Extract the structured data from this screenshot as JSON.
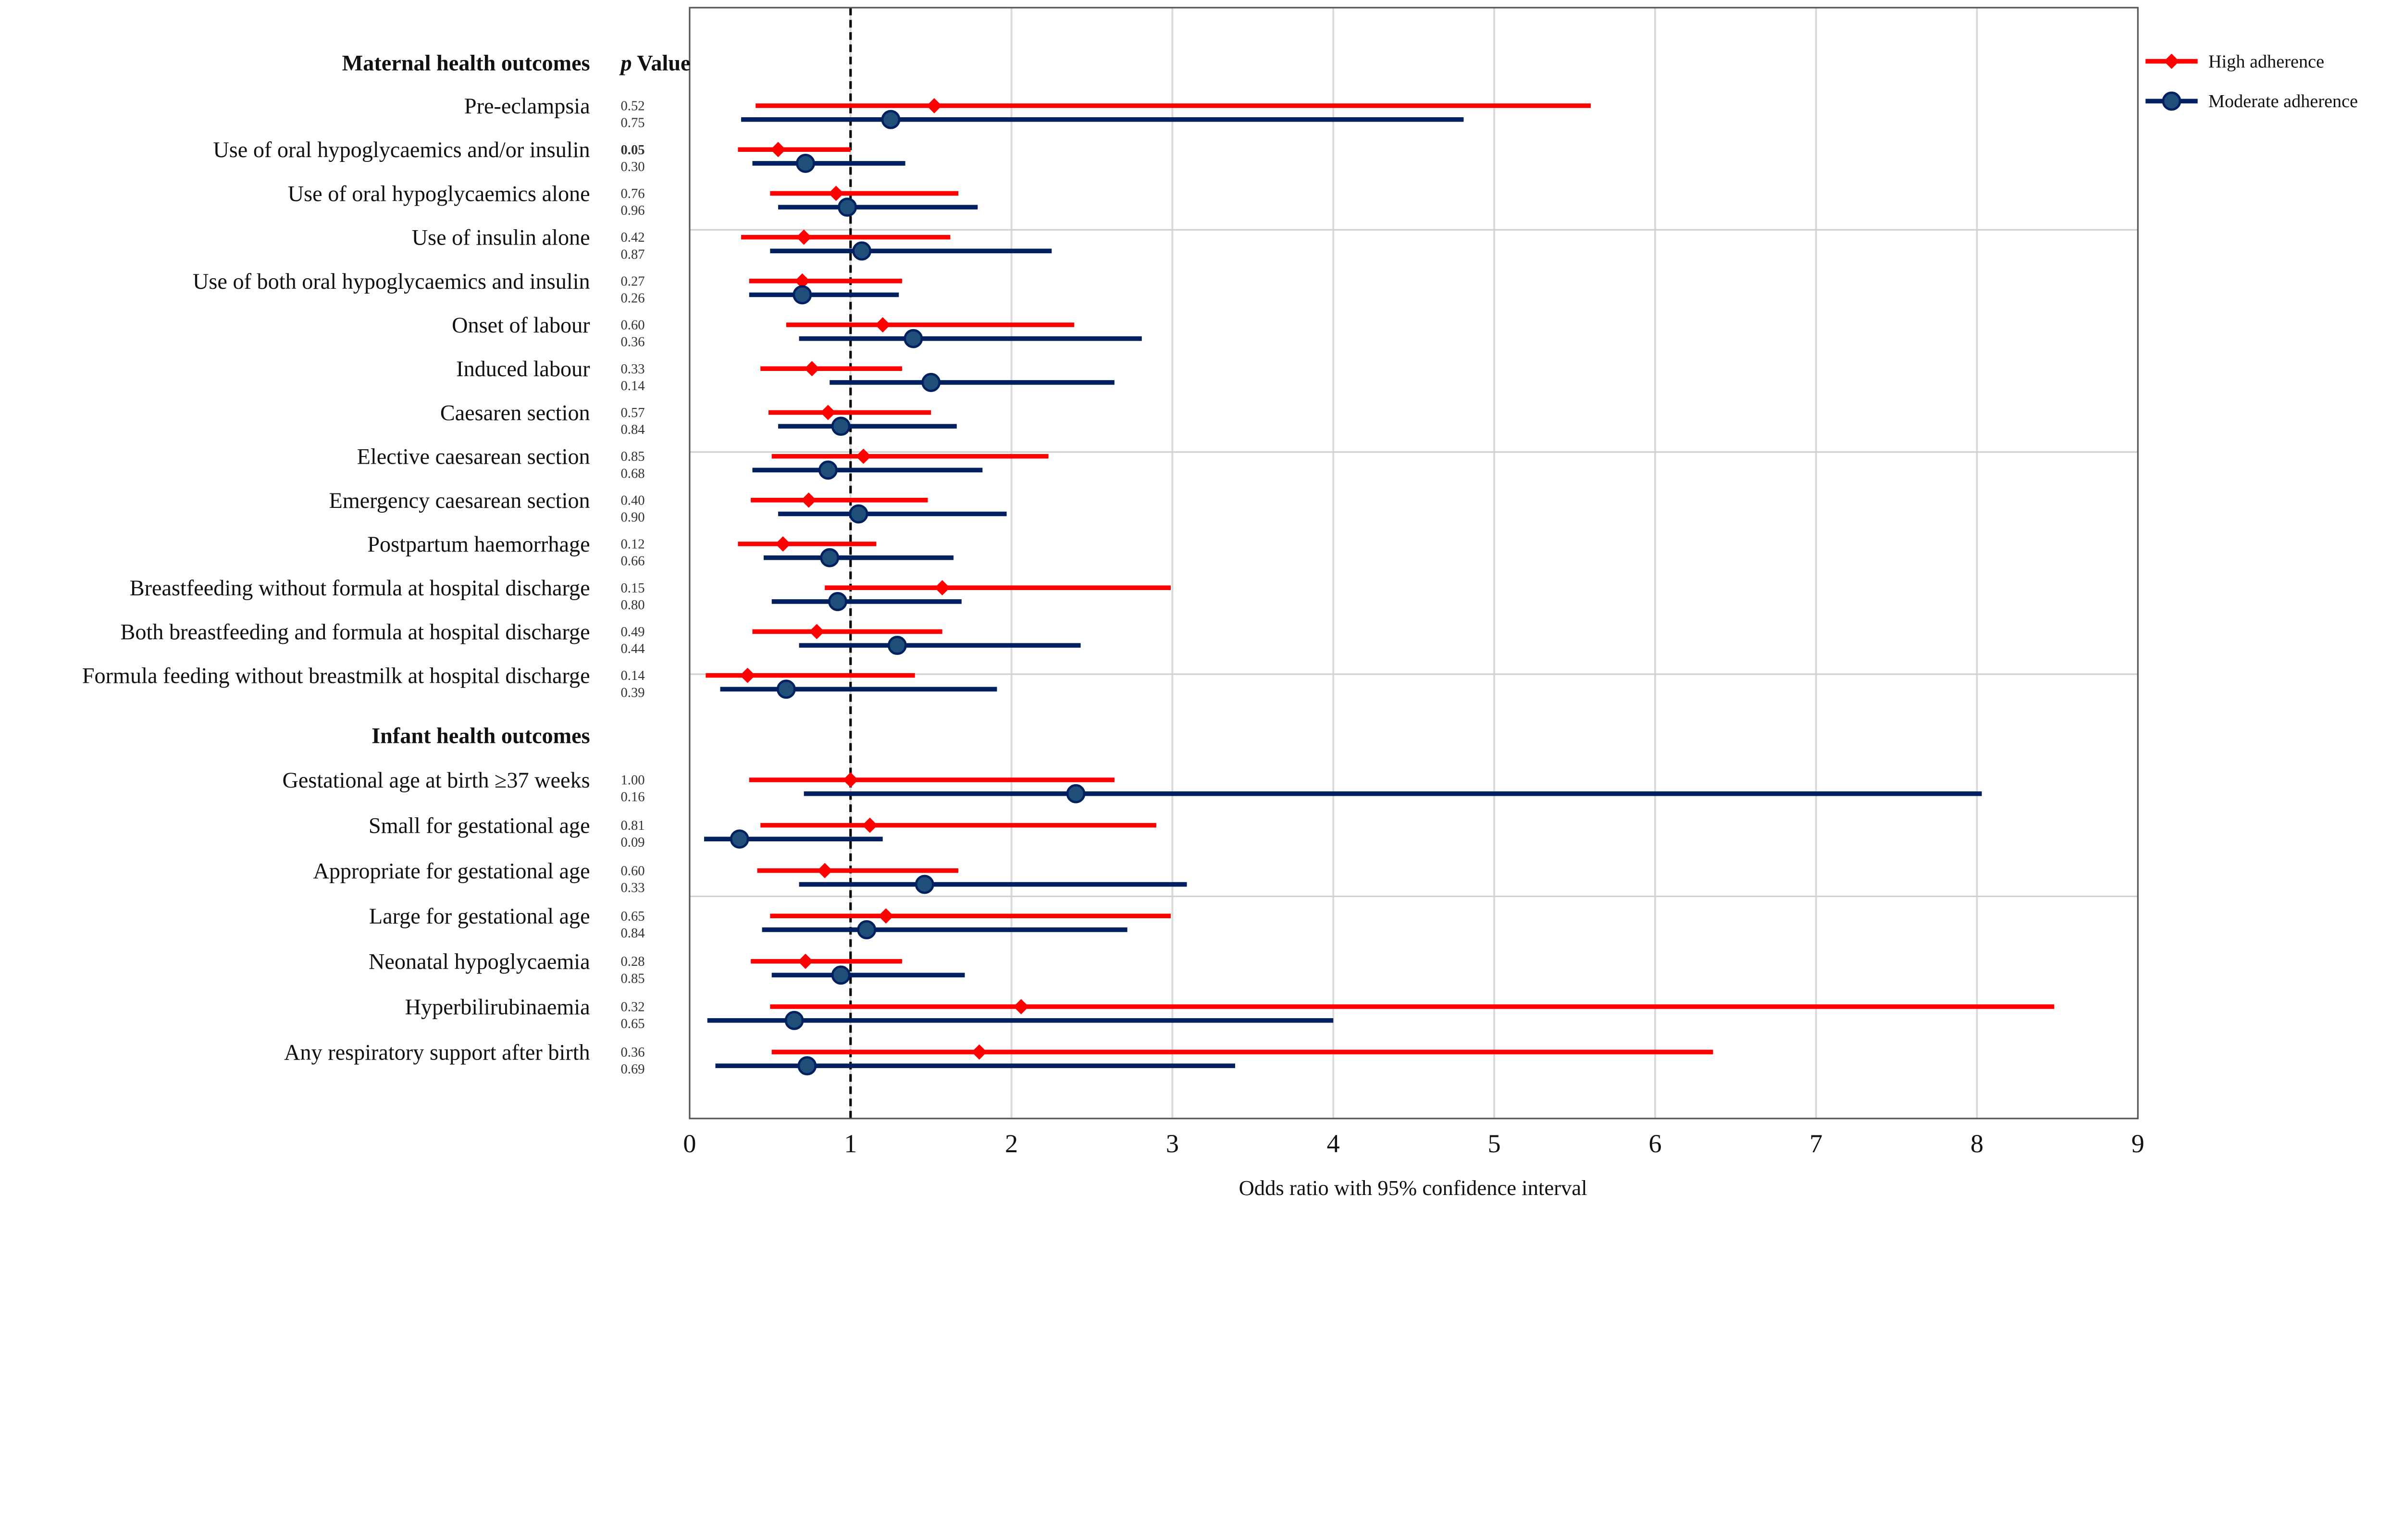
{
  "chart_data": {
    "type": "forest",
    "xlabel": "Odds ratio with 95% confidence interval",
    "xlim": [
      0,
      9
    ],
    "xticks": [
      0,
      1,
      2,
      3,
      4,
      5,
      6,
      7,
      8,
      9
    ],
    "reference_line": 1,
    "grid": "vertical",
    "legend_position": "top-right",
    "pvalue_header": "p Value",
    "colors": {
      "high": "#ff0000",
      "moderate": "#002060",
      "moderate_marker": "#1f4e79"
    },
    "series": [
      {
        "key": "high",
        "name": "High adherence",
        "marker": "diamond"
      },
      {
        "key": "moderate",
        "name": "Moderate adherence",
        "marker": "circle"
      }
    ],
    "groups": [
      {
        "title": "Maternal health outcomes",
        "rows": [
          {
            "label": "Pre-eclampsia",
            "high": [
              1.52,
              0.41,
              5.6
            ],
            "moderate": [
              1.25,
              0.32,
              4.81
            ],
            "p_high": "0.52",
            "p_moderate": "0.75"
          },
          {
            "label": "Use of oral hypoglycaemics and/or insulin",
            "high": [
              0.55,
              0.3,
              1.0
            ],
            "moderate": [
              0.72,
              0.39,
              1.34
            ],
            "p_high": "0.05",
            "p_moderate": "0.30",
            "p_high_bold": true
          },
          {
            "label": "Use of oral hypoglycaemics alone",
            "high": [
              0.91,
              0.5,
              1.67
            ],
            "moderate": [
              0.98,
              0.55,
              1.79
            ],
            "p_high": "0.76",
            "p_moderate": "0.96"
          },
          {
            "label": "Use of insulin alone",
            "high": [
              0.71,
              0.32,
              1.62
            ],
            "moderate": [
              1.07,
              0.5,
              2.25
            ],
            "p_high": "0.42",
            "p_moderate": "0.87"
          },
          {
            "label": "Use of both oral hypoglycaemics and insulin",
            "high": [
              0.7,
              0.37,
              1.32
            ],
            "moderate": [
              0.7,
              0.37,
              1.3
            ],
            "p_high": "0.27",
            "p_moderate": "0.26"
          },
          {
            "label": "Onset of labour",
            "high": [
              1.2,
              0.6,
              2.39
            ],
            "moderate": [
              1.39,
              0.68,
              2.81
            ],
            "p_high": "0.60",
            "p_moderate": "0.36"
          },
          {
            "label": "Induced labour",
            "high": [
              0.76,
              0.44,
              1.32
            ],
            "moderate": [
              1.5,
              0.87,
              2.64
            ],
            "p_high": "0.33",
            "p_moderate": "0.14"
          },
          {
            "label": "Caesaren section",
            "high": [
              0.86,
              0.49,
              1.5
            ],
            "moderate": [
              0.94,
              0.55,
              1.66
            ],
            "p_high": "0.57",
            "p_moderate": "0.84"
          },
          {
            "label": "Elective caesarean section",
            "high": [
              1.08,
              0.51,
              2.23
            ],
            "moderate": [
              0.86,
              0.39,
              1.82
            ],
            "p_high": "0.85",
            "p_moderate": "0.68"
          },
          {
            "label": "Emergency caesarean section",
            "high": [
              0.74,
              0.38,
              1.48
            ],
            "moderate": [
              1.05,
              0.55,
              1.97
            ],
            "p_high": "0.40",
            "p_moderate": "0.90"
          },
          {
            "label": "Postpartum haemorrhage",
            "high": [
              0.58,
              0.3,
              1.16
            ],
            "moderate": [
              0.87,
              0.46,
              1.64
            ],
            "p_high": "0.12",
            "p_moderate": "0.66"
          },
          {
            "label": "Breastfeeding without formula at hospital discharge",
            "high": [
              1.57,
              0.84,
              2.99
            ],
            "moderate": [
              0.92,
              0.51,
              1.69
            ],
            "p_high": "0.15",
            "p_moderate": "0.80"
          },
          {
            "label": "Both breastfeeding and formula at hospital discharge",
            "high": [
              0.79,
              0.39,
              1.57
            ],
            "moderate": [
              1.29,
              0.68,
              2.43
            ],
            "p_high": "0.49",
            "p_moderate": "0.44"
          },
          {
            "label": "Formula feeding without breastmilk at hospital discharge",
            "high": [
              0.36,
              0.1,
              1.4
            ],
            "moderate": [
              0.6,
              0.19,
              1.91
            ],
            "p_high": "0.14",
            "p_moderate": "0.39"
          }
        ]
      },
      {
        "title": "Infant health outcomes",
        "rows": [
          {
            "label": "Gestational age at birth ≥37 weeks",
            "high": [
              1.0,
              0.37,
              2.64
            ],
            "moderate": [
              2.4,
              0.71,
              8.03
            ],
            "p_high": "1.00",
            "p_moderate": "0.16"
          },
          {
            "label": "Small for gestational age",
            "high": [
              1.12,
              0.44,
              2.9
            ],
            "moderate": [
              0.31,
              0.09,
              1.2
            ],
            "p_high": "0.81",
            "p_moderate": "0.09"
          },
          {
            "label": "Appropriate for gestational age",
            "high": [
              0.84,
              0.42,
              1.67
            ],
            "moderate": [
              1.46,
              0.68,
              3.09
            ],
            "p_high": "0.60",
            "p_moderate": "0.33"
          },
          {
            "label": "Large for gestational age",
            "high": [
              1.22,
              0.5,
              2.99
            ],
            "moderate": [
              1.1,
              0.45,
              2.72
            ],
            "p_high": "0.65",
            "p_moderate": "0.84"
          },
          {
            "label": "Neonatal hypoglycaemia",
            "high": [
              0.72,
              0.38,
              1.32
            ],
            "moderate": [
              0.94,
              0.51,
              1.71
            ],
            "p_high": "0.28",
            "p_moderate": "0.85"
          },
          {
            "label": "Hyperbilirubinaemia",
            "high": [
              2.06,
              0.5,
              8.48
            ],
            "moderate": [
              0.65,
              0.11,
              4.0
            ],
            "p_high": "0.32",
            "p_moderate": "0.65"
          },
          {
            "label": "Any respiratory support after birth",
            "high": [
              1.8,
              0.51,
              6.36
            ],
            "moderate": [
              0.73,
              0.16,
              3.39
            ],
            "p_high": "0.36",
            "p_moderate": "0.69"
          }
        ]
      }
    ]
  }
}
